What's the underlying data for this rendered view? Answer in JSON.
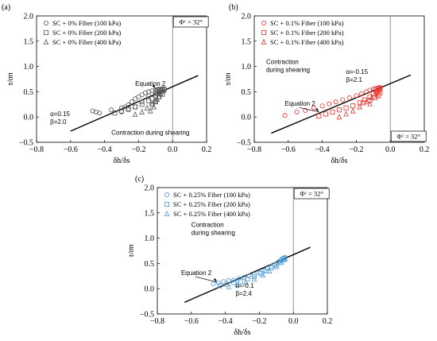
{
  "chart_data": [
    {
      "type": "scatter",
      "panel_label": "(a)",
      "xlabel": "δh/δs",
      "ylabel": "τ/σn",
      "xlim": [
        -0.8,
        0.2
      ],
      "ylim": [
        -0.5,
        2.0
      ],
      "xticks": [
        "−0.8",
        "−0.6",
        "−0.4",
        "−0.2",
        "0.0",
        "0.2"
      ],
      "yticks": [
        "−0.5",
        "0.0",
        "0.5",
        "1.0",
        "1.5",
        "2.0"
      ],
      "color": "#555555",
      "phi_label": "Φᶜ = 32°",
      "phi_box": "top",
      "legend": [
        {
          "marker": "circle",
          "label": "SC + 0% Fiber (100 kPa)"
        },
        {
          "marker": "square",
          "label": "SC + 0% Fiber (200 kPa)"
        },
        {
          "marker": "triangle",
          "label": "SC + 0% Fiber (400 kPa)"
        }
      ],
      "line": {
        "x": [
          -0.6,
          0.15
        ],
        "y": [
          -0.28,
          0.82
        ]
      },
      "equation_label": "Equation 2",
      "alpha_label": "α=0.15",
      "beta_label": "β=2.0",
      "extra_label": "Contraction during shearing",
      "series": [
        {
          "marker": "circle",
          "x": [
            -0.47,
            -0.45,
            -0.43,
            -0.36,
            -0.3,
            -0.28,
            -0.26,
            -0.24,
            -0.22,
            -0.2,
            -0.18,
            -0.16,
            -0.14,
            -0.12,
            -0.1,
            -0.09,
            -0.08,
            -0.07,
            -0.06,
            -0.05,
            -0.22,
            -0.18,
            -0.14,
            -0.1,
            -0.3,
            -0.26
          ],
          "y": [
            0.12,
            0.1,
            0.08,
            0.14,
            0.18,
            0.2,
            0.24,
            0.3,
            0.36,
            0.4,
            0.44,
            0.48,
            0.5,
            0.52,
            0.53,
            0.54,
            0.55,
            0.55,
            0.56,
            0.56,
            0.2,
            0.3,
            0.42,
            0.5,
            0.1,
            0.14
          ]
        },
        {
          "marker": "square",
          "x": [
            -0.34,
            -0.3,
            -0.26,
            -0.22,
            -0.18,
            -0.14,
            -0.12,
            -0.1,
            -0.09,
            -0.08,
            -0.07,
            -0.06,
            -0.05,
            -0.06,
            -0.08,
            -0.1,
            -0.12
          ],
          "y": [
            0.08,
            0.12,
            0.16,
            0.2,
            0.25,
            0.32,
            0.36,
            0.42,
            0.46,
            0.5,
            0.52,
            0.54,
            0.55,
            0.45,
            0.4,
            0.3,
            0.25
          ]
        },
        {
          "marker": "triangle",
          "x": [
            -0.22,
            -0.18,
            -0.15,
            -0.12,
            -0.1,
            -0.08,
            -0.07,
            -0.06,
            -0.05,
            -0.09,
            -0.11,
            -0.13
          ],
          "y": [
            0.05,
            0.1,
            0.18,
            0.25,
            0.32,
            0.4,
            0.46,
            0.5,
            0.53,
            0.35,
            0.2,
            0.12
          ]
        }
      ]
    },
    {
      "type": "scatter",
      "panel_label": "(b)",
      "xlabel": "δh/δs",
      "ylabel": "τ/σn",
      "xlim": [
        -0.8,
        0.2
      ],
      "ylim": [
        -0.5,
        2.0
      ],
      "xticks": [
        "−0.8",
        "−0.6",
        "−0.4",
        "−0.2",
        "0.0",
        "0.2"
      ],
      "yticks": [
        "−0.5",
        "0.0",
        "0.5",
        "1.0",
        "1.5",
        "2.0"
      ],
      "color": "#e8322c",
      "phi_label": "Φᶜ = 32°",
      "phi_box": "bottom",
      "legend": [
        {
          "marker": "circle",
          "label": "SC + 0.1% Fiber (100 kPa)"
        },
        {
          "marker": "square",
          "label": "SC + 0.1% Fiber (200 kPa)"
        },
        {
          "marker": "triangle",
          "label": "SC + 0.1% Fiber (400 kPa)"
        }
      ],
      "line": {
        "x": [
          -0.7,
          0.12
        ],
        "y": [
          -0.32,
          0.83
        ]
      },
      "equation_label": "Equation 2",
      "alpha_label": "α=-0.15",
      "beta_label": "β=2.1",
      "extra_label": "Contraction during shearing",
      "series": [
        {
          "marker": "circle",
          "x": [
            -0.62,
            -0.55,
            -0.5,
            -0.45,
            -0.4,
            -0.36,
            -0.32,
            -0.28,
            -0.24,
            -0.2,
            -0.17,
            -0.14,
            -0.12,
            -0.1,
            -0.09,
            -0.08,
            -0.07,
            -0.06
          ],
          "y": [
            0.03,
            0.1,
            0.13,
            0.18,
            0.22,
            0.26,
            0.3,
            0.34,
            0.38,
            0.42,
            0.46,
            0.5,
            0.53,
            0.55,
            0.56,
            0.57,
            0.58,
            0.58
          ]
        },
        {
          "marker": "square",
          "x": [
            -0.42,
            -0.38,
            -0.34,
            -0.3,
            -0.26,
            -0.22,
            -0.18,
            -0.15,
            -0.12,
            -0.1,
            -0.08,
            -0.07,
            -0.06,
            -0.06,
            -0.07,
            -0.09,
            -0.12,
            -0.16
          ],
          "y": [
            0.02,
            0.06,
            0.1,
            0.14,
            0.18,
            0.22,
            0.28,
            0.34,
            0.4,
            0.46,
            0.5,
            0.54,
            0.56,
            0.48,
            0.42,
            0.38,
            0.33,
            0.28
          ]
        },
        {
          "marker": "triangle",
          "x": [
            -0.3,
            -0.26,
            -0.22,
            -0.18,
            -0.14,
            -0.11,
            -0.09,
            -0.07,
            -0.06,
            -0.08,
            -0.12
          ],
          "y": [
            0.0,
            0.06,
            0.12,
            0.2,
            0.3,
            0.38,
            0.46,
            0.52,
            0.56,
            0.42,
            0.26
          ]
        }
      ]
    },
    {
      "type": "scatter",
      "panel_label": "(c)",
      "xlabel": "δh/δs",
      "ylabel": "τ/σn",
      "xlim": [
        -0.8,
        0.2
      ],
      "ylim": [
        -0.5,
        2.0
      ],
      "xticks": [
        "−0.8",
        "−0.6",
        "−0.4",
        "−0.2",
        "0.0",
        "0.2"
      ],
      "yticks": [
        "−0.5",
        "0.0",
        "0.5",
        "1.0",
        "1.5",
        "2.0"
      ],
      "color": "#4d9bd8",
      "phi_label": "Φᶜ = 32°",
      "phi_box": "top",
      "legend": [
        {
          "marker": "circle",
          "label": "SC + 0.25% Fiber (100 kPa)"
        },
        {
          "marker": "square",
          "label": "SC + 0.25% Fiber (200 kPa)"
        },
        {
          "marker": "triangle",
          "label": "SC + 0.25% Fiber (400 kPa)"
        }
      ],
      "line": {
        "x": [
          -0.64,
          0.1
        ],
        "y": [
          -0.27,
          0.82
        ]
      },
      "equation_label": "Equation 2",
      "alpha_label": "α=-0.1",
      "beta_label": "β=2.4",
      "extra_label": "Contraction during shearing",
      "series": [
        {
          "marker": "circle",
          "x": [
            -0.47,
            -0.44,
            -0.41,
            -0.38,
            -0.35,
            -0.32,
            -0.29,
            -0.26,
            -0.23,
            -0.2,
            -0.17,
            -0.15,
            -0.13,
            -0.11,
            -0.09,
            -0.08,
            -0.07,
            -0.06,
            -0.05
          ],
          "y": [
            0.1,
            0.12,
            0.14,
            0.16,
            0.17,
            0.2,
            0.22,
            0.25,
            0.28,
            0.32,
            0.36,
            0.4,
            0.44,
            0.48,
            0.52,
            0.55,
            0.58,
            0.6,
            0.62
          ]
        },
        {
          "marker": "square",
          "x": [
            -0.43,
            -0.39,
            -0.35,
            -0.31,
            -0.27,
            -0.23,
            -0.19,
            -0.16,
            -0.13,
            -0.1,
            -0.08,
            -0.06,
            -0.05
          ],
          "y": [
            0.06,
            0.09,
            0.12,
            0.15,
            0.19,
            0.24,
            0.3,
            0.35,
            0.41,
            0.47,
            0.52,
            0.57,
            0.6
          ]
        },
        {
          "marker": "triangle",
          "x": [
            -0.38,
            -0.33,
            -0.28,
            -0.23,
            -0.18,
            -0.14,
            -0.1,
            -0.07,
            -0.05
          ],
          "y": [
            0.04,
            0.08,
            0.13,
            0.19,
            0.27,
            0.35,
            0.44,
            0.52,
            0.58
          ]
        }
      ]
    }
  ]
}
